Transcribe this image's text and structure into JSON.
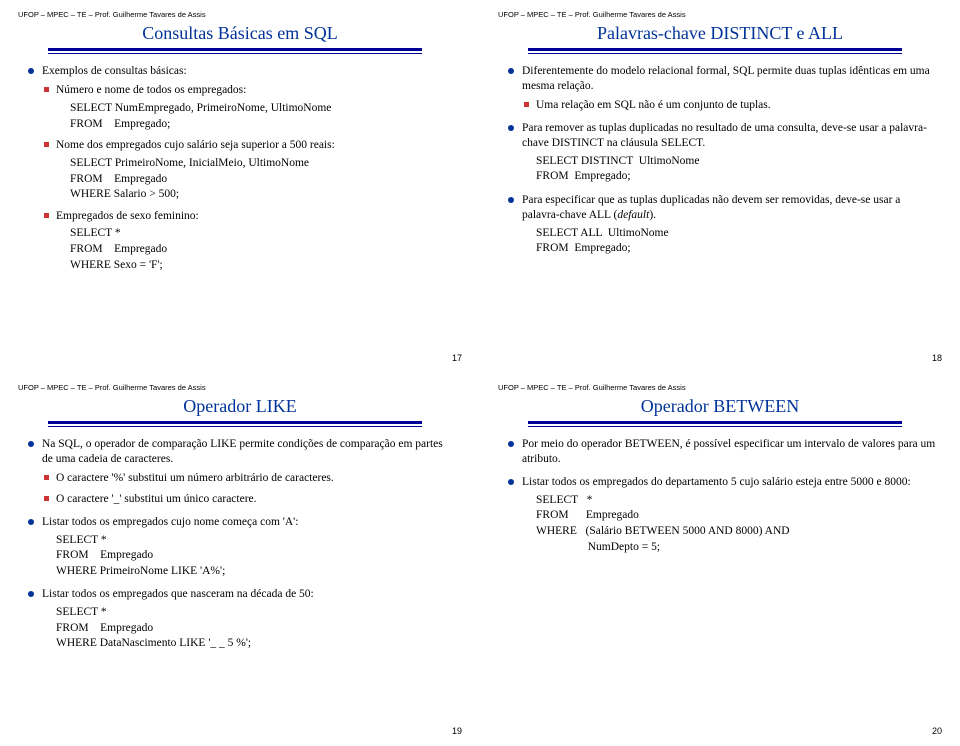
{
  "header": "UFOP – MPEC – TE – Prof. Guilherme Tavares de Assis",
  "slides": {
    "s17": {
      "title": "Consultas Básicas em SQL",
      "b1": "Exemplos de consultas básicas:",
      "s1": "Número e nome de todos os empregados:",
      "c1a": "SELECT NumEmpregado, PrimeiroNome, UltimoNome",
      "c1b": "FROM    Empregado;",
      "s2": "Nome dos empregados cujo salário seja superior a 500 reais:",
      "c2a": "SELECT PrimeiroNome, InicialMeio, UltimoNome",
      "c2b": "FROM    Empregado",
      "c2c": "WHERE Salario > 500;",
      "s3": "Empregados de sexo feminino:",
      "c3a": "SELECT *",
      "c3b": "FROM    Empregado",
      "c3c": "WHERE Sexo = 'F';",
      "num": "17"
    },
    "s18": {
      "title": "Palavras-chave DISTINCT e ALL",
      "b1": "Diferentemente do modelo relacional formal, SQL permite duas tuplas idênticas em uma mesma relação.",
      "s1": "Uma relação em SQL não é um conjunto de tuplas.",
      "b2": "Para remover as tuplas duplicadas no resultado de uma consulta, deve-se usar a palavra-chave DISTINCT na cláusula SELECT.",
      "c2a": "SELECT DISTINCT  UltimoNome",
      "c2b": "FROM  Empregado;",
      "b3a": "Para especificar que as tuplas duplicadas não devem ser removidas, deve-se usar a palavra-chave ALL (",
      "b3b": "default",
      "b3c": ").",
      "c3a": "SELECT ALL  UltimoNome",
      "c3b": "FROM  Empregado;",
      "num": "18"
    },
    "s19": {
      "title": "Operador LIKE",
      "b1": "Na SQL, o operador de comparação LIKE permite condições de comparação em partes de uma cadeia de caracteres.",
      "s1": "O caractere '%' substitui um número arbitrário de caracteres.",
      "s2": "O caractere '_' substitui um único caractere.",
      "b2": "Listar todos os empregados cujo nome começa com 'A':",
      "c2a": "SELECT *",
      "c2b": "FROM    Empregado",
      "c2c": "WHERE PrimeiroNome LIKE 'A%';",
      "b3": "Listar todos os empregados que nasceram na década de 50:",
      "c3a": "SELECT *",
      "c3b": "FROM    Empregado",
      "c3c": "WHERE DataNascimento LIKE '_ _ 5 %';",
      "num": "19"
    },
    "s20": {
      "title": "Operador BETWEEN",
      "b1": "Por meio do operador BETWEEN, é possível especificar um intervalo de valores para um atributo.",
      "b2": "Listar todos os empregados do departamento 5 cujo salário esteja entre 5000 e 8000:",
      "c2a": "SELECT   *",
      "c2b": "FROM      Empregado",
      "c2c": "WHERE   (Salário BETWEEN 5000 AND 8000) AND",
      "c2d": "                  NumDepto = 5;",
      "num": "20"
    }
  }
}
